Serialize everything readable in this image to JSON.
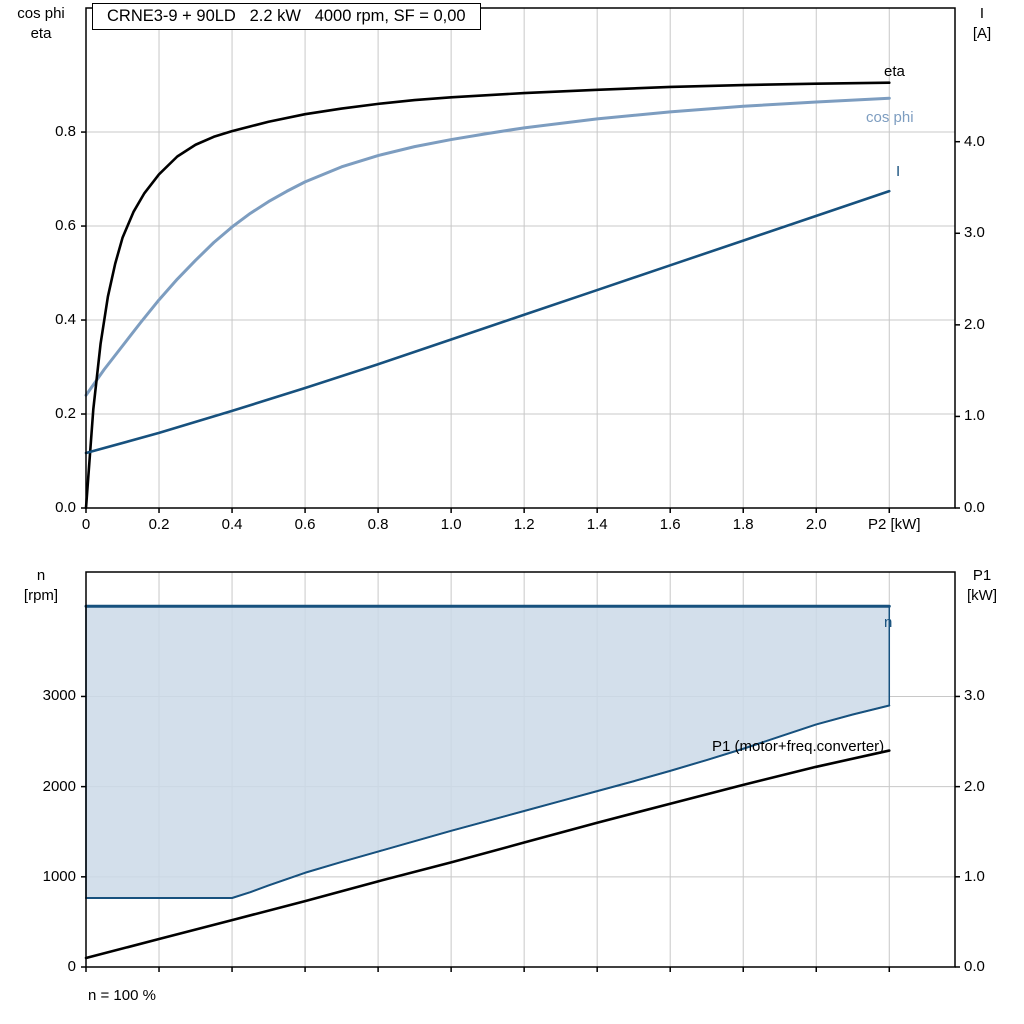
{
  "colors": {
    "eta": "#000000",
    "cos_phi": "#7d9dc0",
    "current": "#17517e",
    "speed": "#17517e",
    "p1": "#000000",
    "fill": "#cbd9e7",
    "grid": "#c8c8c8",
    "frame": "#000000"
  },
  "axis_titles": {
    "top_left": [
      "cos phi",
      "eta"
    ],
    "top_right": [
      "I",
      "[A]"
    ],
    "bottom_left": [
      "n",
      "[rpm]"
    ],
    "bottom_right": [
      "P1",
      "[kW]"
    ]
  },
  "annotations": {
    "eta": "eta",
    "cos_phi": "cos phi",
    "current": "I",
    "speed": "n",
    "p1": "P1 (motor+freq.converter)",
    "n_100": "n = 100 %"
  },
  "chart_data": [
    {
      "type": "line",
      "title": "CRNE3-9 + 90LD   2.2 kW   4000 rpm, SF = 0,00",
      "xlabel": "P2 [kW]",
      "xlim": [
        0,
        2.38
      ],
      "grid": true,
      "x_tick_values": [
        0,
        0.2,
        0.4,
        0.6,
        0.8,
        1.0,
        1.2,
        1.4,
        1.6,
        1.8,
        2.0,
        2.2
      ],
      "x_tick_labels": [
        "0",
        "0.2",
        "0.4",
        "0.6",
        "0.8",
        "1.0",
        "1.2",
        "1.4",
        "1.6",
        "1.8",
        "2.0",
        ""
      ],
      "left_axis": {
        "title": "cos phi / eta",
        "range": [
          0,
          1.064
        ],
        "tick_values": [
          0,
          0.2,
          0.4,
          0.6,
          0.8
        ],
        "tick_labels": [
          "0.0",
          "0.2",
          "0.4",
          "0.6",
          "0.8"
        ]
      },
      "right_axis": {
        "title": "I [A]",
        "range": [
          0,
          5.46
        ],
        "tick_values": [
          0,
          1,
          2,
          3,
          4
        ],
        "tick_labels": [
          "0.0",
          "1.0",
          "2.0",
          "3.0",
          "4.0"
        ]
      },
      "series": [
        {
          "id": "cos-phi",
          "name": "cos phi",
          "axis": "left",
          "color": "#7d9dc0",
          "width": 3,
          "points": [
            [
              0,
              0.24
            ],
            [
              0.05,
              0.295
            ],
            [
              0.1,
              0.345
            ],
            [
              0.15,
              0.395
            ],
            [
              0.2,
              0.443
            ],
            [
              0.25,
              0.487
            ],
            [
              0.3,
              0.527
            ],
            [
              0.35,
              0.565
            ],
            [
              0.4,
              0.598
            ],
            [
              0.45,
              0.627
            ],
            [
              0.5,
              0.652
            ],
            [
              0.55,
              0.674
            ],
            [
              0.6,
              0.694
            ],
            [
              0.7,
              0.726
            ],
            [
              0.8,
              0.75
            ],
            [
              0.9,
              0.769
            ],
            [
              1.0,
              0.784
            ],
            [
              1.1,
              0.797
            ],
            [
              1.2,
              0.809
            ],
            [
              1.4,
              0.828
            ],
            [
              1.6,
              0.843
            ],
            [
              1.8,
              0.855
            ],
            [
              2.0,
              0.864
            ],
            [
              2.2,
              0.872
            ]
          ]
        },
        {
          "id": "eta",
          "name": "eta",
          "axis": "left",
          "color": "#000000",
          "width": 2.6,
          "points": [
            [
              0,
              0
            ],
            [
              0.02,
              0.21
            ],
            [
              0.04,
              0.35
            ],
            [
              0.06,
              0.45
            ],
            [
              0.08,
              0.52
            ],
            [
              0.1,
              0.575
            ],
            [
              0.13,
              0.63
            ],
            [
              0.16,
              0.67
            ],
            [
              0.2,
              0.71
            ],
            [
              0.25,
              0.748
            ],
            [
              0.3,
              0.773
            ],
            [
              0.35,
              0.79
            ],
            [
              0.4,
              0.802
            ],
            [
              0.5,
              0.822
            ],
            [
              0.6,
              0.838
            ],
            [
              0.7,
              0.85
            ],
            [
              0.8,
              0.86
            ],
            [
              0.9,
              0.868
            ],
            [
              1.0,
              0.874
            ],
            [
              1.2,
              0.883
            ],
            [
              1.4,
              0.89
            ],
            [
              1.6,
              0.896
            ],
            [
              1.8,
              0.9
            ],
            [
              2.0,
              0.903
            ],
            [
              2.2,
              0.905
            ]
          ]
        },
        {
          "id": "current",
          "name": "I",
          "axis": "right",
          "color": "#17517e",
          "width": 2.6,
          "points": [
            [
              0,
              0.6
            ],
            [
              0.2,
              0.82
            ],
            [
              0.4,
              1.06
            ],
            [
              0.6,
              1.31
            ],
            [
              0.8,
              1.57
            ],
            [
              1.0,
              1.84
            ],
            [
              1.2,
              2.11
            ],
            [
              1.4,
              2.38
            ],
            [
              1.6,
              2.65
            ],
            [
              1.8,
              2.92
            ],
            [
              2.0,
              3.19
            ],
            [
              2.2,
              3.46
            ]
          ]
        }
      ]
    },
    {
      "type": "line",
      "title": "",
      "xlabel": "",
      "footnote": "n = 100 %",
      "xlim": [
        0,
        2.38
      ],
      "grid": true,
      "x_tick_values": [
        0,
        0.2,
        0.4,
        0.6,
        0.8,
        1.0,
        1.2,
        1.4,
        1.6,
        1.8,
        2.0,
        2.2
      ],
      "x_tick_labels": [],
      "left_axis": {
        "title": "n [rpm]",
        "range": [
          0,
          4380
        ],
        "tick_values": [
          0,
          1000,
          2000,
          3000
        ],
        "tick_labels": [
          "0",
          "1000",
          "2000",
          "3000"
        ]
      },
      "right_axis": {
        "title": "P1 [kW]",
        "range": [
          0,
          4.38
        ],
        "tick_values": [
          0,
          1,
          2,
          3
        ],
        "tick_labels": [
          "0.0",
          "1.0",
          "2.0",
          "3.0"
        ]
      },
      "fill": {
        "upper": "speed",
        "lower": "speed-min",
        "color": "#cbd9e7",
        "opacity": 0.85,
        "edge_color": "#17517e"
      },
      "series": [
        {
          "id": "speed-min",
          "name": "speed range lower limit",
          "axis": "left",
          "color": "#17517e",
          "width": 2,
          "points": [
            [
              0,
              765
            ],
            [
              0.4,
              765
            ],
            [
              0.45,
              830
            ],
            [
              0.5,
              905
            ],
            [
              0.6,
              1045
            ],
            [
              0.7,
              1165
            ],
            [
              0.8,
              1280
            ],
            [
              0.9,
              1395
            ],
            [
              1.0,
              1510
            ],
            [
              1.1,
              1620
            ],
            [
              1.2,
              1730
            ],
            [
              1.3,
              1840
            ],
            [
              1.4,
              1950
            ],
            [
              1.5,
              2060
            ],
            [
              1.6,
              2175
            ],
            [
              1.7,
              2295
            ],
            [
              1.8,
              2420
            ],
            [
              1.9,
              2555
            ],
            [
              2.0,
              2690
            ],
            [
              2.1,
              2800
            ],
            [
              2.2,
              2900
            ]
          ]
        },
        {
          "id": "speed",
          "name": "n",
          "axis": "left",
          "color": "#17517e",
          "width": 3,
          "points": [
            [
              0,
              4000
            ],
            [
              2.2,
              4000
            ]
          ]
        },
        {
          "id": "p1",
          "name": "P1 (motor+freq.converter)",
          "axis": "right",
          "color": "#000000",
          "width": 2.6,
          "points": [
            [
              0,
              0.1
            ],
            [
              0.2,
              0.31
            ],
            [
              0.4,
              0.52
            ],
            [
              0.6,
              0.73
            ],
            [
              0.8,
              0.95
            ],
            [
              1.0,
              1.16
            ],
            [
              1.2,
              1.38
            ],
            [
              1.4,
              1.6
            ],
            [
              1.6,
              1.81
            ],
            [
              1.8,
              2.02
            ],
            [
              2.0,
              2.22
            ],
            [
              2.2,
              2.4
            ]
          ]
        }
      ]
    }
  ]
}
